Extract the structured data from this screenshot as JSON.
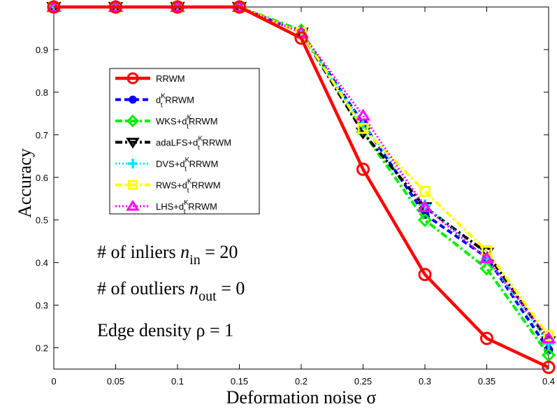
{
  "chart_data": {
    "type": "line",
    "xlabel": "Deformation noise σ",
    "ylabel": "Accuracy",
    "x": [
      0,
      0.05,
      0.1,
      0.15,
      0.2,
      0.25,
      0.3,
      0.35,
      0.4
    ],
    "x_tick_labels": [
      "0",
      "0.05",
      "0.1",
      "0.15",
      "0.2",
      "0.25",
      "0.3",
      "0.35",
      "0.4"
    ],
    "y_tick_labels": [
      "0.2",
      "0.3",
      "0.4",
      "0.5",
      "0.6",
      "0.7",
      "0.8",
      "0.9"
    ],
    "xlim": [
      0,
      0.4
    ],
    "ylim": [
      0.15,
      1.0
    ],
    "grid": false,
    "legend_position": "upper-left",
    "series": [
      {
        "name": "RRWM",
        "legend_main": "RRWM",
        "legend_sup": "",
        "legend_sub": "",
        "legend_after": "",
        "color": "#ff0000",
        "dash": "",
        "width": 4.5,
        "marker": "circle",
        "values": [
          1.0,
          1.0,
          1.0,
          1.0,
          0.927,
          0.619,
          0.372,
          0.222,
          0.154
        ]
      },
      {
        "name": "dtK RRWM",
        "legend_main": "d",
        "legend_sup": "K",
        "legend_sub": "t",
        "legend_after": " RRWM",
        "color": "#0000ff",
        "dash": "8,5",
        "width": 4,
        "marker": "dot",
        "values": [
          1.0,
          1.0,
          1.0,
          1.0,
          0.94,
          0.727,
          0.513,
          0.412,
          0.195
        ]
      },
      {
        "name": "WKS+dtKRRWM",
        "legend_main": "WKS+d",
        "legend_sup": "K",
        "legend_sub": "t",
        "legend_after": "RRWM",
        "color": "#00ee00",
        "dash": "10,4,3,4",
        "width": 4,
        "marker": "diamond",
        "values": [
          1.0,
          1.0,
          1.0,
          1.0,
          0.945,
          0.707,
          0.5,
          0.386,
          0.183
        ]
      },
      {
        "name": "adaLFS+dtK RRWM",
        "legend_main": "adaLFS+d",
        "legend_sup": "K",
        "legend_sub": "t",
        "legend_after": " RRWM",
        "color": "#000000",
        "dash": "10,4,3,4",
        "width": 4,
        "marker": "triangle-down",
        "values": [
          1.0,
          1.0,
          1.0,
          1.0,
          0.94,
          0.705,
          0.53,
          0.423,
          0.215
        ]
      },
      {
        "name": "DVS+dtK RRWM",
        "legend_main": "DVS+d",
        "legend_sup": "K",
        "legend_sub": "t",
        "legend_after": " RRWM",
        "color": "#00e5ff",
        "dash": "2,3",
        "width": 3,
        "marker": "plus",
        "values": [
          1.0,
          1.0,
          1.0,
          1.0,
          0.94,
          0.725,
          0.535,
          0.41,
          0.21
        ]
      },
      {
        "name": "RWS+dtK RRWM",
        "legend_main": "RWS+d",
        "legend_sup": "K",
        "legend_sub": "t",
        "legend_after": " RRWM",
        "color": "#ffff00",
        "dash": "10,4,3,4",
        "width": 4,
        "marker": "square",
        "values": [
          1.0,
          1.0,
          1.0,
          1.0,
          0.94,
          0.715,
          0.567,
          0.428,
          0.228
        ]
      },
      {
        "name": "LHS+dtK RRWM",
        "legend_main": "LHS+d",
        "legend_sup": "K",
        "legend_sub": "t",
        "legend_after": " RRWM",
        "color": "#ff00ff",
        "dash": "2,3",
        "width": 3,
        "marker": "triangle-up",
        "values": [
          1.0,
          1.0,
          1.0,
          1.0,
          0.94,
          0.745,
          0.53,
          0.41,
          0.222
        ]
      }
    ],
    "annotations": {
      "inliers": {
        "prefix": "# of inliers ",
        "var": "n",
        "sub": "in",
        "suffix": " = 20"
      },
      "outliers": {
        "prefix": "# of outliers ",
        "var": "n",
        "sub": "out",
        "suffix": " = 0"
      },
      "density": {
        "text": "Edge density ρ = 1"
      }
    }
  }
}
